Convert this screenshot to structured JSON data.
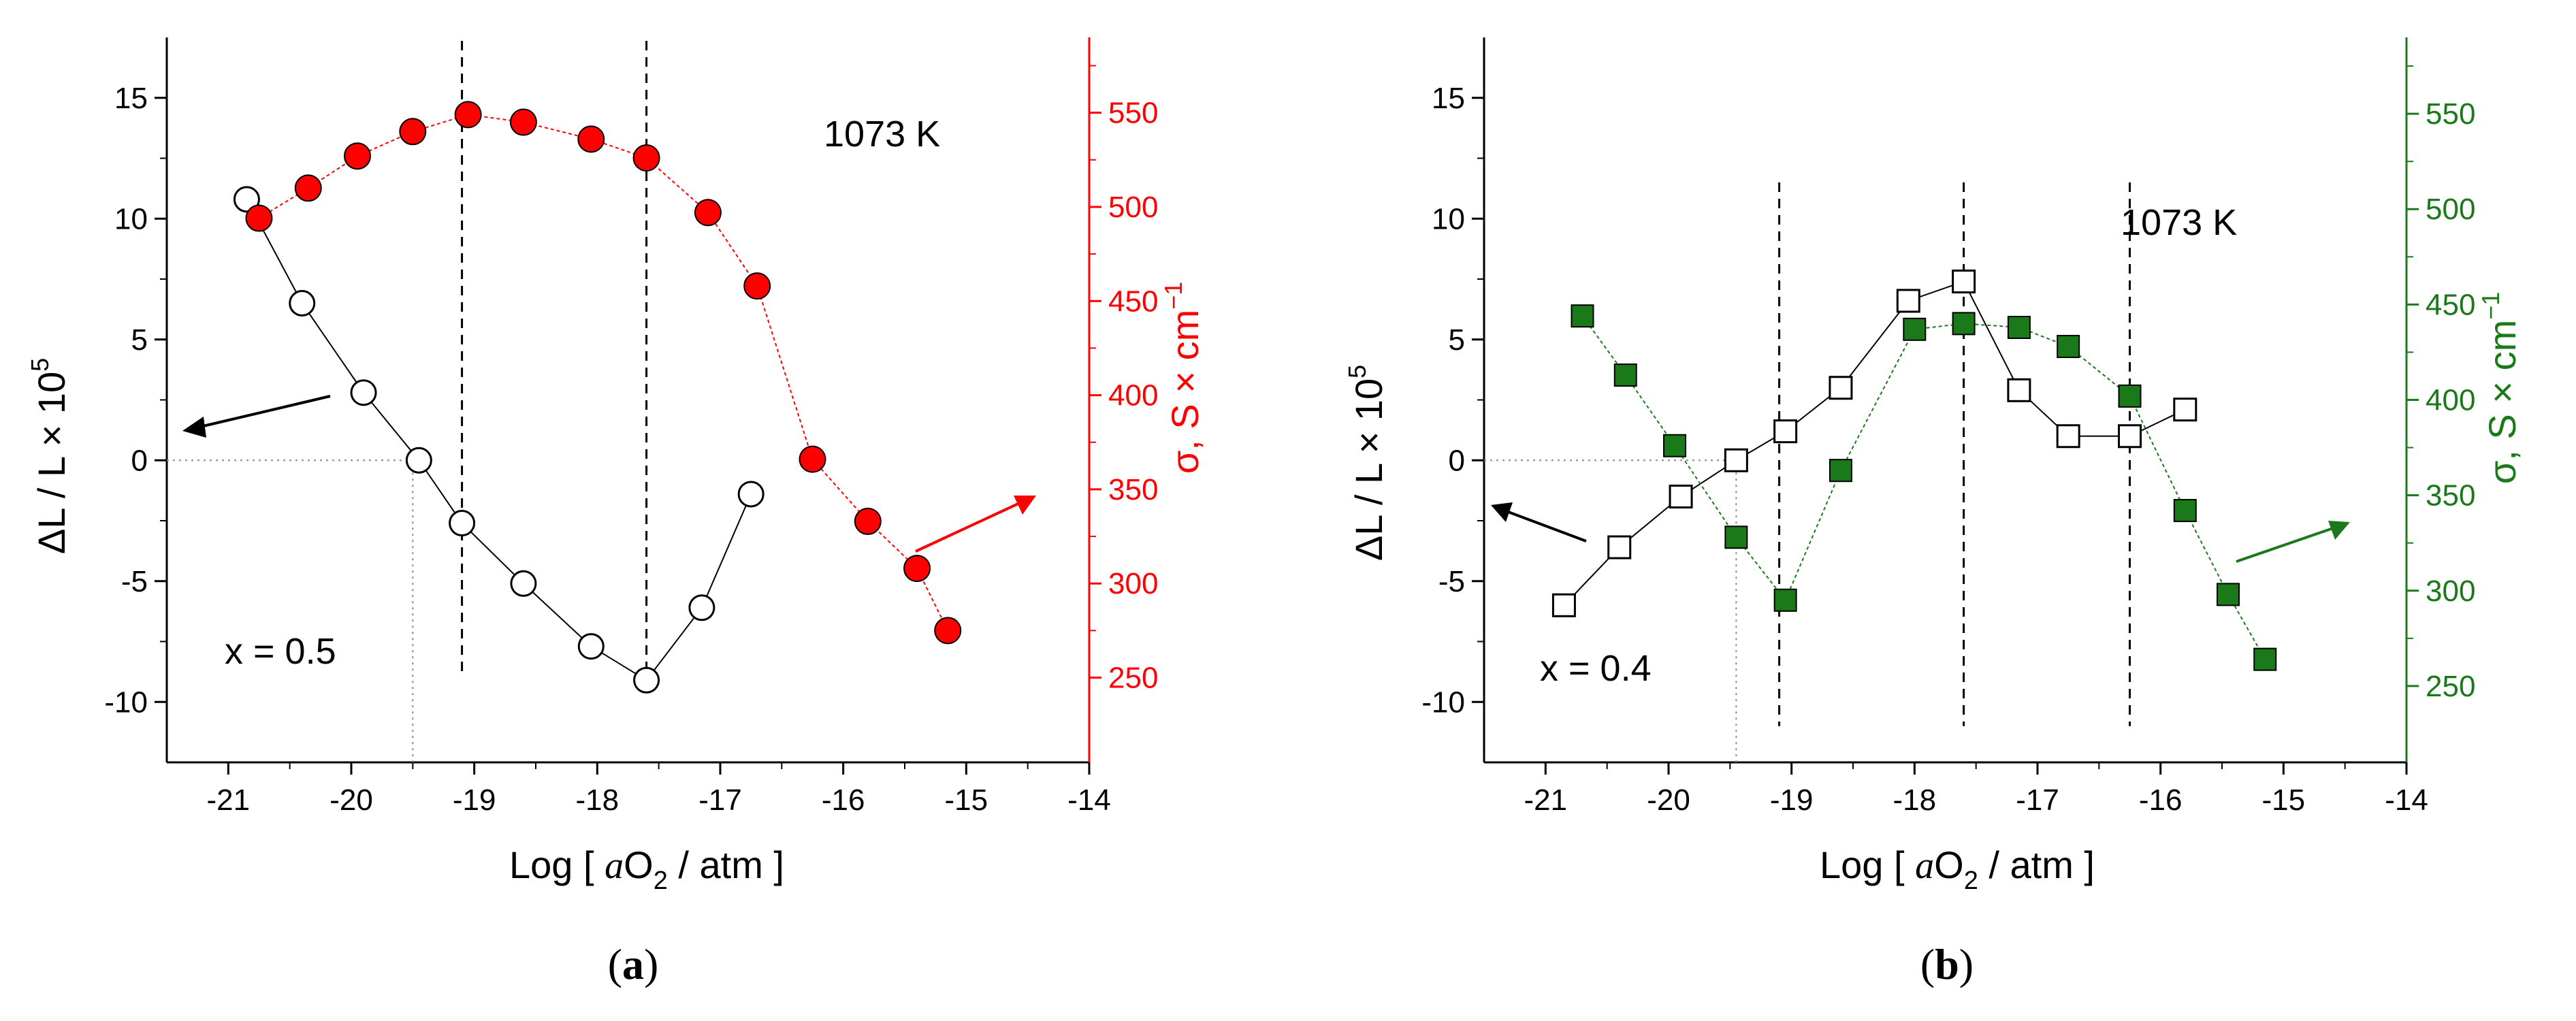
{
  "chart_data": [
    {
      "type": "scatter",
      "panel_label": "a",
      "title": "",
      "xlabel": "Log [ aO2 / atm ]",
      "xlabel_parts": {
        "prefix": "Log [ ",
        "italic": "a",
        "main": "O",
        "sub": "2",
        "suffix": " / atm ]"
      },
      "ylabel_left": "ΔL / L × 10^5",
      "ylabel_left_parts": {
        "main": "ΔL / L × 10",
        "sup": "5"
      },
      "ylabel_right": "σ, S × cm^-1",
      "ylabel_right_parts": {
        "main": "σ, S × cm",
        "sup": "−1"
      },
      "xlim": [
        -21.5,
        -14
      ],
      "ylim_left": [
        -12.5,
        17.5
      ],
      "ylim_right": [
        205,
        590
      ],
      "xticks": [
        -21,
        -20,
        -19,
        -18,
        -17,
        -16,
        -15,
        -14
      ],
      "xtick_labels": [
        "-21",
        "-20",
        "-19",
        "-18",
        "-17",
        "-16",
        "-15",
        "-14"
      ],
      "yticks_left": [
        -10,
        -5,
        0,
        5,
        10,
        15
      ],
      "ytick_left_labels": [
        "-10",
        "-5",
        "0",
        "5",
        "10",
        "15"
      ],
      "yticks_right": [
        250,
        300,
        350,
        400,
        450,
        500,
        550
      ],
      "ytick_right_labels": [
        "250",
        "300",
        "350",
        "400",
        "450",
        "500",
        "550"
      ],
      "right_axis_color": "#ff0000",
      "dilation_color": "#000000",
      "conductivity_color": "#ff0000",
      "annotations": {
        "temperature": "1073 K",
        "composition": "x = 0.5"
      },
      "series": [
        {
          "name": "ΔL/L",
          "axis": "left",
          "marker": "circle-open",
          "color": "#000000",
          "x": [
            -20.85,
            -20.4,
            -19.9,
            -19.45,
            -19.1,
            -18.6,
            -18.05,
            -17.6,
            -17.15,
            -16.75
          ],
          "y": [
            10.8,
            6.5,
            2.8,
            0.0,
            -2.6,
            -5.1,
            -7.7,
            -9.1,
            -6.1,
            -1.4
          ]
        },
        {
          "name": "σ",
          "axis": "right",
          "marker": "circle-filled",
          "color": "#ff0000",
          "x": [
            -20.75,
            -20.35,
            -19.95,
            -19.5,
            -19.05,
            -18.6,
            -18.05,
            -17.6,
            -17.1,
            -16.7,
            -16.25,
            -15.8,
            -15.4,
            -15.15
          ],
          "y": [
            494,
            510,
            527,
            540,
            549,
            545,
            536,
            526,
            497,
            458,
            366,
            333,
            308,
            275
          ]
        }
      ],
      "reference_lines": {
        "vertical_dashed_x": [
          -19.1,
          -17.6
        ],
        "dotted_zero_from_x": -19.5
      }
    },
    {
      "type": "scatter",
      "panel_label": "b",
      "title": "",
      "xlabel": "Log [ aO2 / atm ]",
      "xlabel_parts": {
        "prefix": "Log [ ",
        "italic": "a",
        "main": "O",
        "sub": "2",
        "suffix": " / atm ]"
      },
      "ylabel_left": "ΔL / L × 10^5",
      "ylabel_left_parts": {
        "main": "ΔL / L × 10",
        "sup": "5"
      },
      "ylabel_right": "σ, S × cm^-1",
      "ylabel_right_parts": {
        "main": "σ, S × cm",
        "sup": "−1"
      },
      "xlim": [
        -21.5,
        -14
      ],
      "ylim_left": [
        -12.5,
        17.5
      ],
      "ylim_right": [
        210,
        590
      ],
      "xticks": [
        -21,
        -20,
        -19,
        -18,
        -17,
        -16,
        -15,
        -14
      ],
      "xtick_labels": [
        "-21",
        "-20",
        "-19",
        "-18",
        "-17",
        "-16",
        "-15",
        "-14"
      ],
      "yticks_left": [
        -10,
        -5,
        0,
        5,
        10,
        15
      ],
      "ytick_left_labels": [
        "-10",
        "-5",
        "0",
        "5",
        "10",
        "15"
      ],
      "yticks_right": [
        250,
        300,
        350,
        400,
        450,
        500,
        550
      ],
      "ytick_right_labels": [
        "250",
        "300",
        "350",
        "400",
        "450",
        "500",
        "550"
      ],
      "right_axis_color": "#1a7a1a",
      "dilation_color": "#000000",
      "conductivity_color": "#1a7a1a",
      "annotations": {
        "temperature": "1073 K",
        "composition": "x = 0.4"
      },
      "series": [
        {
          "name": "ΔL/L",
          "axis": "left",
          "marker": "square-open",
          "color": "#000000",
          "x": [
            -20.85,
            -20.4,
            -19.9,
            -19.45,
            -19.05,
            -18.6,
            -18.05,
            -17.6,
            -17.15,
            -16.75,
            -16.25,
            -15.8
          ],
          "y": [
            -6.0,
            -3.6,
            -1.5,
            0.0,
            1.2,
            3.0,
            6.6,
            7.4,
            2.9,
            1.0,
            1.0,
            2.1
          ]
        },
        {
          "name": "σ",
          "axis": "right",
          "marker": "square-filled",
          "color": "#1a7a1a",
          "x": [
            -20.7,
            -20.35,
            -19.95,
            -19.45,
            -19.05,
            -18.6,
            -18.0,
            -17.6,
            -17.15,
            -16.75,
            -16.25,
            -15.8,
            -15.45,
            -15.15
          ],
          "y": [
            444,
            413,
            376,
            328,
            295,
            363,
            437,
            440,
            438,
            428,
            402,
            342,
            298,
            264
          ]
        }
      ],
      "reference_lines": {
        "vertical_dashed_x": [
          -19.1,
          -17.6,
          -16.25
        ],
        "dotted_zero_from_x": -19.45
      }
    }
  ]
}
